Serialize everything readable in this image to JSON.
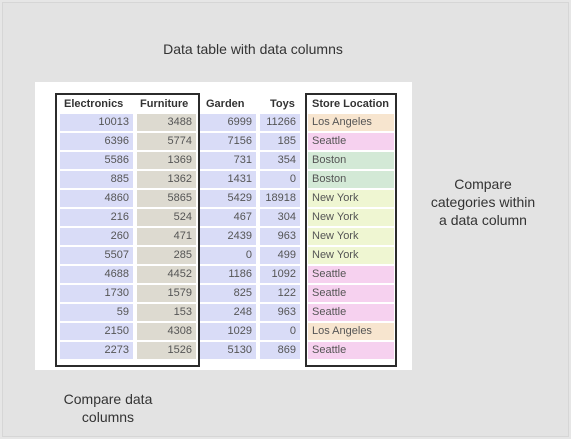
{
  "title": "Data table with data columns",
  "annotations": {
    "right": "Compare\ncategories within\na data column",
    "bottom": "Compare data\ncolumns"
  },
  "table": {
    "columns": [
      "Electronics",
      "Furniture",
      "Garden",
      "Toys",
      "Store Location"
    ],
    "rows": [
      {
        "Electronics": 10013,
        "Furniture": 3488,
        "Garden": 6999,
        "Toys": 11266,
        "Store Location": "Los Angeles"
      },
      {
        "Electronics": 6396,
        "Furniture": 5774,
        "Garden": 7156,
        "Toys": 185,
        "Store Location": "Seattle"
      },
      {
        "Electronics": 5586,
        "Furniture": 1369,
        "Garden": 731,
        "Toys": 354,
        "Store Location": "Boston"
      },
      {
        "Electronics": 885,
        "Furniture": 1362,
        "Garden": 1431,
        "Toys": 0,
        "Store Location": "Boston"
      },
      {
        "Electronics": 4860,
        "Furniture": 5865,
        "Garden": 5429,
        "Toys": 18918,
        "Store Location": "New York"
      },
      {
        "Electronics": 216,
        "Furniture": 524,
        "Garden": 467,
        "Toys": 304,
        "Store Location": "New York"
      },
      {
        "Electronics": 260,
        "Furniture": 471,
        "Garden": 2439,
        "Toys": 963,
        "Store Location": "New York"
      },
      {
        "Electronics": 5507,
        "Furniture": 285,
        "Garden": 0,
        "Toys": 499,
        "Store Location": "New York"
      },
      {
        "Electronics": 4688,
        "Furniture": 4452,
        "Garden": 1186,
        "Toys": 1092,
        "Store Location": "Seattle"
      },
      {
        "Electronics": 1730,
        "Furniture": 1579,
        "Garden": 825,
        "Toys": 122,
        "Store Location": "Seattle"
      },
      {
        "Electronics": 59,
        "Furniture": 153,
        "Garden": 248,
        "Toys": 963,
        "Store Location": "Seattle"
      },
      {
        "Electronics": 2150,
        "Furniture": 4308,
        "Garden": 1029,
        "Toys": 0,
        "Store Location": "Los Angeles"
      },
      {
        "Electronics": 2273,
        "Furniture": 1526,
        "Garden": 5130,
        "Toys": 869,
        "Store Location": "Seattle"
      }
    ]
  },
  "colors": {
    "numeric_column_fill": "#d9dcf7",
    "furniture_fill": "#dddad0",
    "location_fills": {
      "Los Angeles": "#f7e5cf",
      "Seattle": "#f6d1ef",
      "Boston": "#d3e9d6",
      "New York": "#eff6d2"
    }
  }
}
